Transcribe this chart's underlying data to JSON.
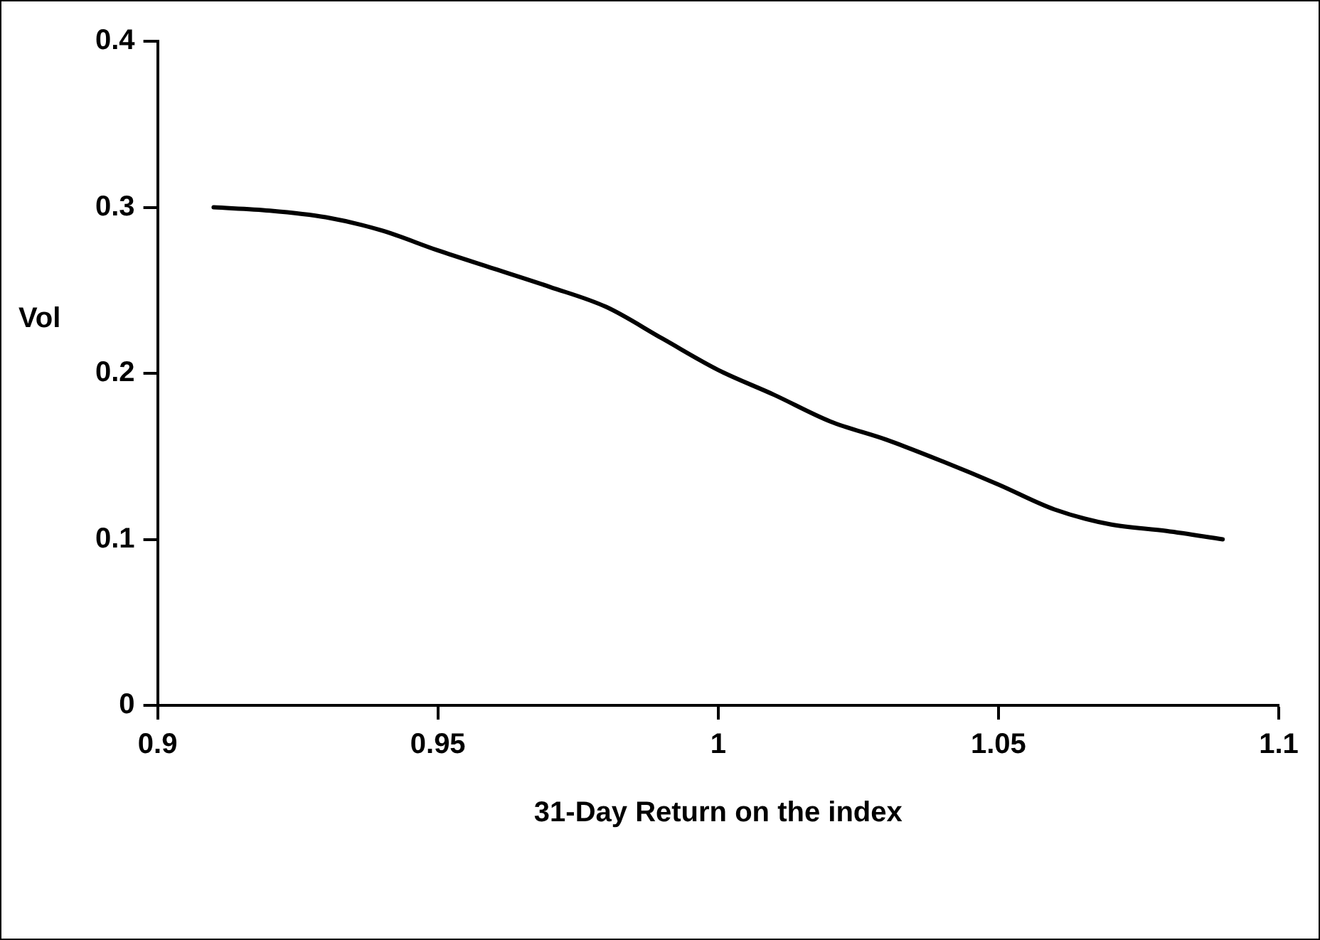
{
  "chart_data": {
    "type": "line",
    "xlabel": "31-Day Return on the index",
    "ylabel": "Vol",
    "x": [
      0.91,
      0.92,
      0.93,
      0.94,
      0.95,
      0.96,
      0.97,
      0.98,
      0.99,
      1.0,
      1.01,
      1.02,
      1.03,
      1.04,
      1.05,
      1.06,
      1.07,
      1.08,
      1.09
    ],
    "series": [
      {
        "color": "#000000",
        "values": [
          0.3,
          0.298,
          0.294,
          0.286,
          0.274,
          0.263,
          0.252,
          0.24,
          0.221,
          0.202,
          0.187,
          0.171,
          0.16,
          0.147,
          0.133,
          0.118,
          0.109,
          0.105,
          0.1
        ]
      }
    ],
    "xlim": [
      0.9,
      1.1
    ],
    "xticks": [
      0.9,
      0.95,
      1,
      1.05,
      1.1
    ],
    "ylim": [
      0,
      0.4
    ],
    "yticks": [
      0,
      0.1,
      0.2,
      0.3,
      0.4
    ],
    "grid": false,
    "legend": false,
    "marker": "none",
    "line_style": "solid"
  }
}
